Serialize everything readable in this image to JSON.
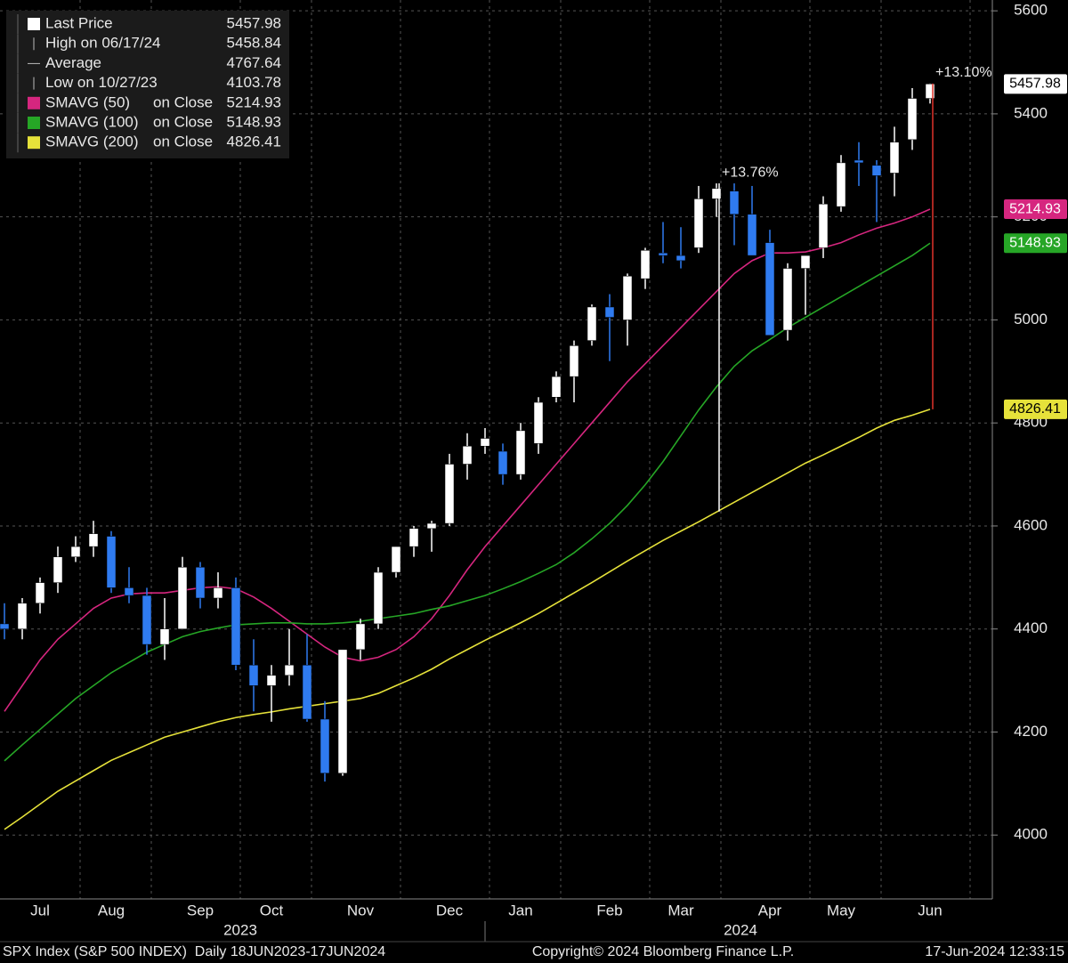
{
  "chart_data": {
    "type": "candlestick",
    "categories": [
      null,
      null,
      "Jul",
      null,
      null,
      null,
      "Aug",
      null,
      null,
      null,
      null,
      "Sep",
      null,
      null,
      null,
      "Oct",
      null,
      null,
      null,
      null,
      "Nov",
      null,
      null,
      null,
      null,
      "Dec",
      null,
      null,
      null,
      "Jan",
      null,
      null,
      null,
      null,
      "Feb",
      null,
      null,
      null,
      "Mar",
      null,
      null,
      null,
      null,
      "Apr",
      null,
      null,
      null,
      "May",
      null,
      null,
      null,
      null,
      "Jun"
    ],
    "year_labels": [
      "2023",
      "2024"
    ],
    "open": [
      4410,
      4400,
      4450,
      4490,
      4540,
      4560,
      4580,
      4480,
      4465,
      4370,
      4400,
      4520,
      4460,
      4480,
      4330,
      4290,
      4310,
      4330,
      4225,
      4120,
      4360,
      4410,
      4510,
      4560,
      4595,
      4605,
      4720,
      4755,
      4745,
      4700,
      4760,
      4850,
      4890,
      4960,
      5025,
      5000,
      5080,
      5130,
      5125,
      5140,
      5235,
      5250,
      5205,
      5150,
      4980,
      5100,
      5140,
      5220,
      5310,
      5300,
      5285,
      5350,
      5430
    ],
    "high": [
      4450,
      4460,
      4500,
      4560,
      4580,
      4610,
      4590,
      4520,
      4480,
      4460,
      4540,
      4530,
      4510,
      4500,
      4380,
      4330,
      4400,
      4390,
      4260,
      4360,
      4420,
      4520,
      4560,
      4600,
      4610,
      4740,
      4780,
      4790,
      4760,
      4800,
      4850,
      4900,
      4960,
      5030,
      5050,
      5090,
      5140,
      5190,
      5180,
      5260,
      5265,
      5265,
      5260,
      5175,
      5110,
      5125,
      5240,
      5320,
      5345,
      5310,
      5375,
      5450,
      5458.84
    ],
    "low": [
      4380,
      4380,
      4430,
      4470,
      4530,
      4540,
      4470,
      4450,
      4350,
      4340,
      4400,
      4440,
      4440,
      4320,
      4240,
      4220,
      4290,
      4220,
      4103.78,
      4115,
      4340,
      4400,
      4500,
      4540,
      4550,
      4600,
      4690,
      4740,
      4680,
      4690,
      4740,
      4840,
      4840,
      4950,
      4920,
      4950,
      5060,
      5110,
      5100,
      5130,
      5200,
      5145,
      5140,
      4970,
      4960,
      5010,
      5120,
      5210,
      5260,
      5190,
      5240,
      5330,
      5420
    ],
    "close": [
      4400,
      4450,
      4490,
      4540,
      4560,
      4585,
      4480,
      4465,
      4370,
      4400,
      4520,
      4460,
      4480,
      4330,
      4290,
      4310,
      4330,
      4225,
      4120,
      4360,
      4410,
      4510,
      4560,
      4595,
      4605,
      4720,
      4755,
      4770,
      4700,
      4785,
      4840,
      4890,
      4950,
      5025,
      5005,
      5085,
      5135,
      5125,
      5115,
      5235,
      5255,
      5205,
      5125,
      4970,
      5100,
      5125,
      5225,
      5305,
      5305,
      5280,
      5345,
      5430,
      5457.98
    ],
    "up_color": "#ffffff",
    "down_color": "#2f7bf0",
    "series": [
      {
        "name": "SMAVG (50)",
        "suffix": "on Close",
        "color": "#d6267f",
        "values": [
          4240,
          4290,
          4340,
          4380,
          4410,
          4440,
          4460,
          4468,
          4470,
          4470,
          4475,
          4480,
          4482,
          4478,
          4462,
          4440,
          4415,
          4390,
          4365,
          4345,
          4338,
          4345,
          4360,
          4385,
          4420,
          4465,
          4515,
          4560,
          4600,
          4640,
          4680,
          4720,
          4760,
          4800,
          4840,
          4880,
          4915,
          4950,
          4985,
          5020,
          5055,
          5090,
          5115,
          5130,
          5130,
          5132,
          5140,
          5150,
          5165,
          5178,
          5188,
          5200,
          5214.93
        ]
      },
      {
        "name": "SMAVG (100)",
        "suffix": "on Close",
        "color": "#26a626",
        "values": [
          4144,
          4175,
          4205,
          4235,
          4265,
          4290,
          4315,
          4335,
          4355,
          4370,
          4385,
          4395,
          4402,
          4408,
          4410,
          4412,
          4412,
          4410,
          4410,
          4412,
          4415,
          4420,
          4425,
          4430,
          4438,
          4445,
          4455,
          4465,
          4478,
          4492,
          4508,
          4525,
          4548,
          4575,
          4605,
          4640,
          4680,
          4725,
          4775,
          4825,
          4870,
          4910,
          4940,
          4962,
          4985,
          5005,
          5025,
          5045,
          5065,
          5085,
          5105,
          5125,
          5148.93
        ]
      },
      {
        "name": "SMAVG (200)",
        "suffix": "on Close",
        "color": "#e6e23a",
        "values": [
          4011,
          4035,
          4060,
          4085,
          4105,
          4125,
          4145,
          4160,
          4175,
          4190,
          4200,
          4210,
          4220,
          4228,
          4234,
          4239,
          4245,
          4250,
          4255,
          4260,
          4265,
          4275,
          4290,
          4305,
          4322,
          4342,
          4360,
          4378,
          4395,
          4412,
          4430,
          4450,
          4470,
          4490,
          4511,
          4532,
          4552,
          4572,
          4590,
          4608,
          4627,
          4646,
          4665,
          4684,
          4703,
          4722,
          4738,
          4755,
          4772,
          4790,
          4805,
          4815,
          4826.41
        ]
      }
    ],
    "stats": {
      "last_label": "Last Price",
      "high_label": "High on 06/17/24",
      "average_label": "Average",
      "average": 4767.64,
      "low_label": "Low on 10/27/23"
    },
    "annotations": [
      {
        "text": "+13.76%",
        "from": 4628,
        "to": 5265,
        "color": "#ffffff"
      },
      {
        "text": "+13.10%",
        "from": 4826.41,
        "to": 5458.84,
        "color": "#e0332a"
      }
    ],
    "ylim": [
      3876,
      5621
    ],
    "yticks": [
      4000,
      4200,
      4400,
      4600,
      4800,
      5000,
      5200,
      5400,
      5600
    ],
    "grid": true,
    "footer": {
      "left": "SPX Index (S&P 500 INDEX)  Daily 18JUN2023-17JUN2024",
      "center": "Copyright© 2024 Bloomberg Finance L.P.",
      "right": "17-Jun-2024 12:33:15"
    }
  }
}
